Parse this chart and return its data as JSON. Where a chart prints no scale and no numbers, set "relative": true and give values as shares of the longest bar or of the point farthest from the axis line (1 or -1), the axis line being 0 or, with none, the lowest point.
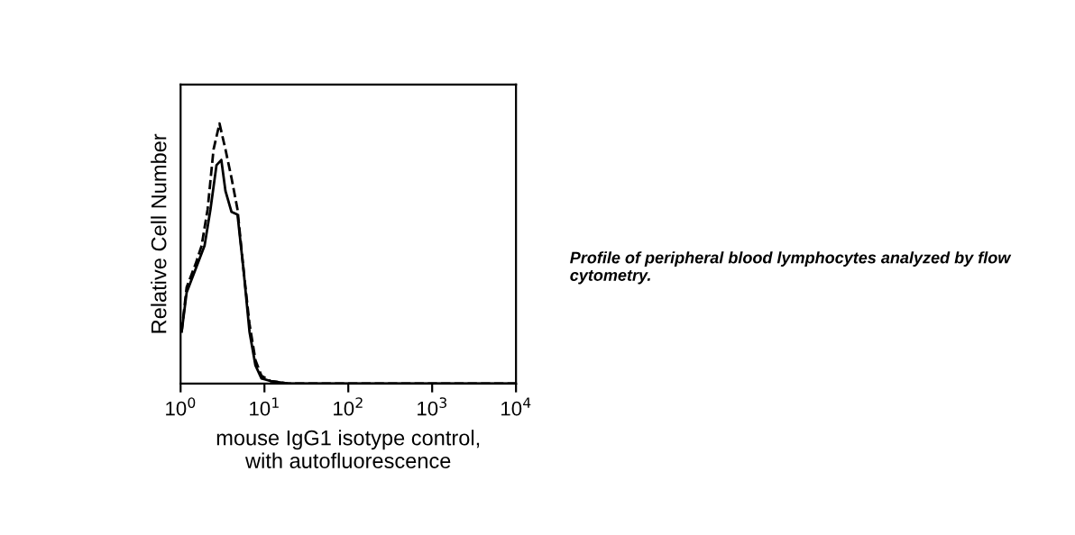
{
  "chart_data": {
    "type": "line",
    "relative": true,
    "log": "x",
    "xlabel": "mouse IgG1 isotype control,\nwith autofluorescence",
    "ylabel": "Relative Cell Number",
    "xlim": [
      1,
      10000
    ],
    "xticks": [
      {
        "value": 1,
        "label": "10$^{0}$"
      },
      {
        "value": 10,
        "label": "10$^{1}$"
      },
      {
        "value": 100,
        "label": "10$^{2}$"
      },
      {
        "value": 1000,
        "label": "10$^{3}$"
      },
      {
        "value": 10000,
        "label": "10$^{4}$"
      }
    ],
    "grid": false,
    "legend": false,
    "tick_labels": "x",
    "marker": "none",
    "annotations": [
      "Profile of peripheral blood lymphocytes analyzed by flow cytometry."
    ],
    "series": [
      {
        "color": "#000000",
        "line_style": "dashed",
        "x": [
          1.03,
          1.18,
          1.51,
          1.78,
          2.1,
          2.47,
          2.91,
          3.43,
          4.05,
          4.77,
          5.62,
          6.63,
          7.81,
          9.21,
          11.8,
          19.3,
          139,
          10000
        ],
        "values": [
          0.2,
          0.37,
          0.46,
          0.53,
          0.67,
          0.9,
          1.0,
          0.9,
          0.79,
          0.67,
          0.44,
          0.23,
          0.09,
          0.03,
          0.01,
          0,
          0,
          0
        ]
      },
      {
        "color": "#000000",
        "line_style": "solid",
        "x": [
          1.03,
          1.18,
          1.51,
          1.93,
          2.27,
          2.68,
          3.06,
          3.43,
          4.05,
          4.77,
          5.62,
          6.63,
          7.81,
          9.21,
          11.8,
          19.3,
          139,
          10000
        ],
        "values": [
          0.2,
          0.35,
          0.44,
          0.53,
          0.67,
          0.84,
          0.86,
          0.74,
          0.66,
          0.65,
          0.44,
          0.2,
          0.07,
          0.02,
          0.01,
          0,
          0,
          0
        ]
      }
    ]
  }
}
